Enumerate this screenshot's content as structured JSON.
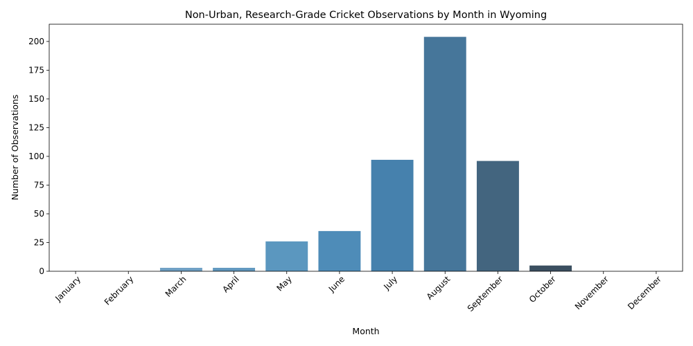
{
  "chart_data": {
    "type": "bar",
    "title": "Non-Urban, Research-Grade Cricket Observations by Month in Wyoming",
    "xlabel": "Month",
    "ylabel": "Number of Observations",
    "categories": [
      "January",
      "February",
      "March",
      "April",
      "May",
      "June",
      "July",
      "August",
      "September",
      "October",
      "November",
      "December"
    ],
    "values": [
      0,
      0,
      3,
      3,
      26,
      35,
      97,
      204,
      96,
      5,
      0,
      0
    ],
    "colors": [
      "#8fb6d2",
      "#7eabcb",
      "#6fa0c4",
      "#6198bf",
      "#5b97bf",
      "#4e8cb8",
      "#4681ad",
      "#46769a",
      "#43657f",
      "#3b4f60",
      "#344553",
      "#2e3a44"
    ],
    "ylim": [
      0,
      215
    ],
    "yticks": [
      0,
      25,
      50,
      75,
      100,
      125,
      150,
      175,
      200
    ],
    "grid": false,
    "legend": "none"
  }
}
